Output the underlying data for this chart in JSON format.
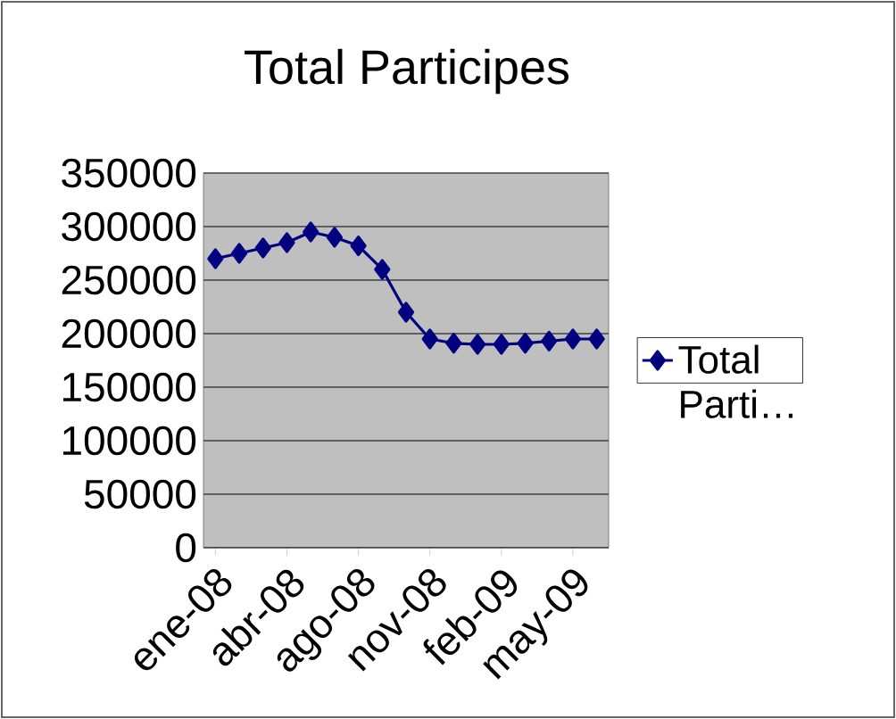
{
  "chart_data": {
    "type": "line",
    "title": "Total Participes",
    "categories": [
      "ene-08",
      null,
      null,
      "abr-08",
      null,
      null,
      "ago-08",
      null,
      null,
      "nov-08",
      null,
      null,
      "feb-09",
      null,
      null,
      "may-09",
      null
    ],
    "series": [
      {
        "name": "Total Parti…",
        "color": "#000080",
        "values": [
          270000,
          275000,
          280000,
          285000,
          295000,
          290000,
          282000,
          260000,
          220000,
          195000,
          191000,
          190000,
          190000,
          191000,
          193000,
          195000,
          195000
        ]
      }
    ],
    "ylim": [
      0,
      350000
    ],
    "yticks": [
      0,
      50000,
      100000,
      150000,
      200000,
      250000,
      300000,
      350000
    ],
    "grid": "y",
    "legend": "right",
    "marker": "diamond",
    "line_style": "solid"
  }
}
